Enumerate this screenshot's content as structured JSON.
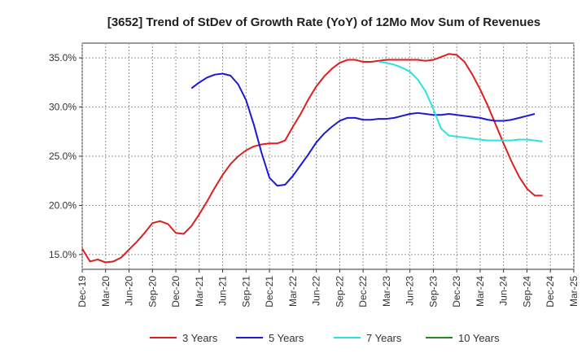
{
  "chart_data": {
    "type": "line",
    "title": "[3652]  Trend of StDev of Growth Rate (YoY) of 12Mo Mov Sum of Revenues",
    "xlabel": "",
    "ylabel": "",
    "ylim": [
      13.5,
      36.5
    ],
    "yticks": [
      15.0,
      20.0,
      25.0,
      30.0,
      35.0
    ],
    "ytick_labels": [
      "15.0%",
      "20.0%",
      "25.0%",
      "30.0%",
      "35.0%"
    ],
    "xlim": [
      0,
      63
    ],
    "xtick_positions": [
      0,
      3,
      6,
      9,
      12,
      15,
      18,
      21,
      24,
      27,
      30,
      33,
      36,
      39,
      42,
      45,
      48,
      51,
      54,
      57,
      60,
      63
    ],
    "xtick_labels": [
      "Dec-19",
      "Mar-20",
      "Jun-20",
      "Sep-20",
      "Dec-20",
      "Mar-21",
      "Jun-21",
      "Sep-21",
      "Dec-21",
      "Mar-22",
      "Jun-22",
      "Sep-22",
      "Dec-22",
      "Mar-23",
      "Jun-23",
      "Sep-23",
      "Dec-23",
      "Mar-24",
      "Jun-24",
      "Sep-24",
      "Dec-24",
      "Mar-25"
    ],
    "grid": true,
    "legend_position": "bottom",
    "series": [
      {
        "name": "3 Years",
        "color": "#dd1f1f",
        "start": 0,
        "values": [
          15.6,
          14.3,
          14.5,
          14.2,
          14.3,
          14.7,
          15.5,
          16.3,
          17.2,
          18.2,
          18.4,
          18.1,
          17.2,
          17.1,
          17.9,
          19.1,
          20.4,
          21.8,
          23.1,
          24.2,
          25.0,
          25.6,
          26.0,
          26.2,
          26.3,
          26.3,
          26.6,
          28.0,
          29.3,
          30.8,
          32.1,
          33.1,
          33.9,
          34.5,
          34.8,
          34.8,
          34.6,
          34.6,
          34.7,
          34.8,
          34.8,
          34.8,
          34.8,
          34.8,
          34.7,
          34.8,
          35.1,
          35.4,
          35.3,
          34.6,
          33.3,
          31.8,
          30.1,
          28.2,
          26.3,
          24.5,
          22.9,
          21.7,
          21.0,
          21.0
        ]
      },
      {
        "name": "5 Years",
        "color": "#1a1ad2",
        "start": 14,
        "values": [
          31.9,
          32.5,
          33.0,
          33.3,
          33.4,
          33.2,
          32.3,
          30.7,
          28.2,
          25.3,
          22.8,
          22.0,
          22.1,
          23.0,
          24.1,
          25.2,
          26.4,
          27.3,
          28.0,
          28.6,
          28.9,
          28.9,
          28.7,
          28.7,
          28.8,
          28.8,
          28.9,
          29.1,
          29.3,
          29.4,
          29.3,
          29.2,
          29.2,
          29.3,
          29.2,
          29.1,
          29.0,
          28.9,
          28.7,
          28.6,
          28.6,
          28.7,
          28.9,
          29.1,
          29.3
        ]
      },
      {
        "name": "7 Years",
        "color": "#29e3e3",
        "start": 38,
        "values": [
          34.6,
          34.5,
          34.3,
          34.0,
          33.6,
          32.8,
          31.6,
          29.8,
          27.8,
          27.1,
          27.0,
          26.9,
          26.8,
          26.7,
          26.6,
          26.6,
          26.6,
          26.6,
          26.7,
          26.7,
          26.6,
          26.5
        ]
      },
      {
        "name": "10 Years",
        "color": "#1f8a1f",
        "start": 0,
        "values": []
      }
    ]
  }
}
